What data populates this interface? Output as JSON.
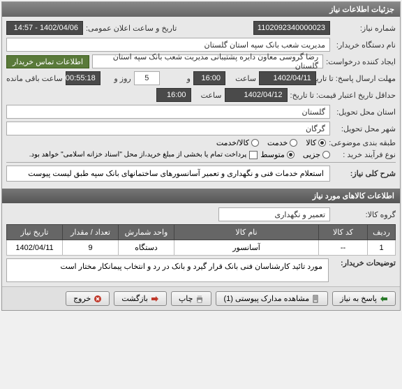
{
  "panel_title": "جزئیات اطلاعات نیاز",
  "fields": {
    "request_no_label": "شماره نیاز:",
    "request_no": "1102092340000023",
    "announce_label": "تاریخ و ساعت اعلان عمومی:",
    "announce_value": "1402/04/06 - 14:57",
    "buyer_org_label": "نام دستگاه خریدار:",
    "buyer_org": "مدیریت شعب بانک سپه استان گلستان",
    "creator_label": "ایجاد کننده درخواست:",
    "creator": "رضا گروسی معاون دایره پشتیبانی مدیریت شعب بانک سپه استان گلستان",
    "contact_btn": "اطلاعات تماس خریدار",
    "deadline_label": "مهلت ارسال پاسخ: تا تاریخ:",
    "deadline_date": "1402/04/11",
    "time_label": "ساعت",
    "deadline_time": "16:00",
    "and_label": "و",
    "days": "5",
    "day_label": "روز و",
    "remain_time": "00:55:18",
    "remain_label": "ساعت باقی مانده",
    "validity_label": "حداقل تاریخ اعتبار قیمت: تا تاریخ:",
    "validity_date": "1402/04/12",
    "validity_time": "16:00",
    "province_label": "استان محل تحویل:",
    "province": "گلستان",
    "city_label": "شهر محل تحویل:",
    "city": "گرگان",
    "category_label": "طبقه بندی موضوعی:",
    "cat_goods": "کالا",
    "cat_service": "خدمت",
    "cat_both": "کالا/خدمت",
    "process_label": "نوع فرآیند خرید :",
    "proc_small": "جزیی",
    "proc_medium": "متوسط",
    "proc_note": "پرداخت تمام یا بخشی از مبلغ خرید،از محل \"اسناد خزانه اسلامی\" خواهد بود.",
    "desc_label": "شرح کلی نیاز:",
    "desc": "استعلام خدمات فنی و نگهداری و تعمیر آسانسورهای ساختمانهای بانک سپه طبق لیست پیوست"
  },
  "goods_panel_title": "اطلاعات کالاهای مورد نیاز",
  "goods": {
    "group_label": "گروه کالا:",
    "group_value": "تعمیر و نگهداری",
    "headers": {
      "row": "ردیف",
      "code": "کد کالا",
      "name": "نام کالا",
      "unit": "واحد شمارش",
      "qty": "تعداد / مقدار",
      "date": "تاریخ نیاز"
    },
    "rows": [
      {
        "row": "1",
        "code": "--",
        "name": "آسانسور",
        "unit": "دستگاه",
        "qty": "9",
        "date": "1402/04/11"
      }
    ],
    "buyer_note_label": "توضیحات خریدار:",
    "buyer_note": "مورد تائید کارشناسان فنی بانک قرار گیرد و بانک در رد و انتخاب پیمانکار مختار است"
  },
  "buttons": {
    "reply": "پاسخ به نیاز",
    "attachments": "مشاهده مدارک پیوستی (1)",
    "print": "چاپ",
    "back": "بازگشت",
    "exit": "خروج"
  }
}
